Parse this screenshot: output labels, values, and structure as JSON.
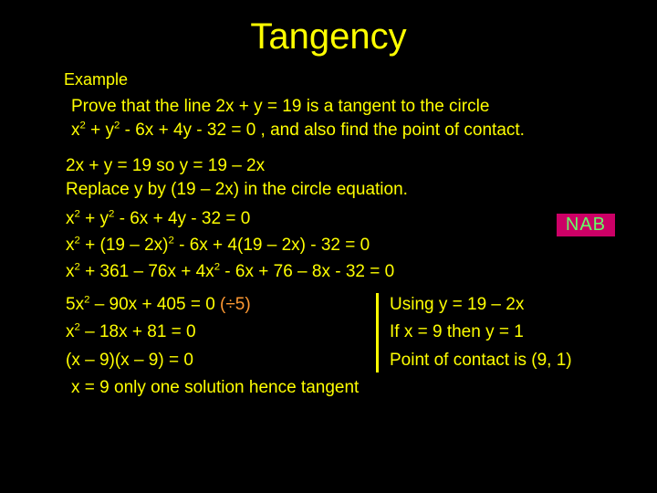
{
  "background_color": "#000000",
  "text_color": "#ffff00",
  "accent_color": "#ff9933",
  "nab_bg": "#cc0066",
  "nab_fg": "#66ff66",
  "font_family": "Comic Sans MS",
  "title": "Tangency",
  "example_label": "Example",
  "problem_l1": "Prove that the line  2x + y = 19  is a tangent to  the circle",
  "problem_l2a": "x",
  "problem_l2b": " + y",
  "problem_l2c": " - 6x + 4y - 32 = 0 , and also find the point of contact.",
  "step1a": "2x + y = 19    so    y = 19 – 2x",
  "step1b": "Replace y  by  (19 – 2x)  in the circle equation.",
  "nab": "NAB",
  "eq1a": "x",
  "eq1b": " + y",
  "eq1c": " - 6x + 4y - 32 = 0",
  "eq2a": "x",
  "eq2b": " + (19 – 2x)",
  "eq2c": " - 6x + 4(19 – 2x) - 32 = 0",
  "eq3a": "x",
  "eq3b": " + 361 – 76x + 4x",
  "eq3c": " - 6x + 76 – 8x - 32 = 0",
  "left1a": "5x",
  "left1b": " – 90x + 405 = 0  ",
  "left1_orange": "(÷5)",
  "left2a": "x",
  "left2b": " – 18x + 81 = 0",
  "left3": "(x – 9)(x – 9) = 0",
  "right1": "Using    y = 19 – 2x",
  "right2": "If  x = 9  then  y = 1",
  "right3": "Point of contact is (9, 1)",
  "final": "x = 9 only one solution hence tangent"
}
